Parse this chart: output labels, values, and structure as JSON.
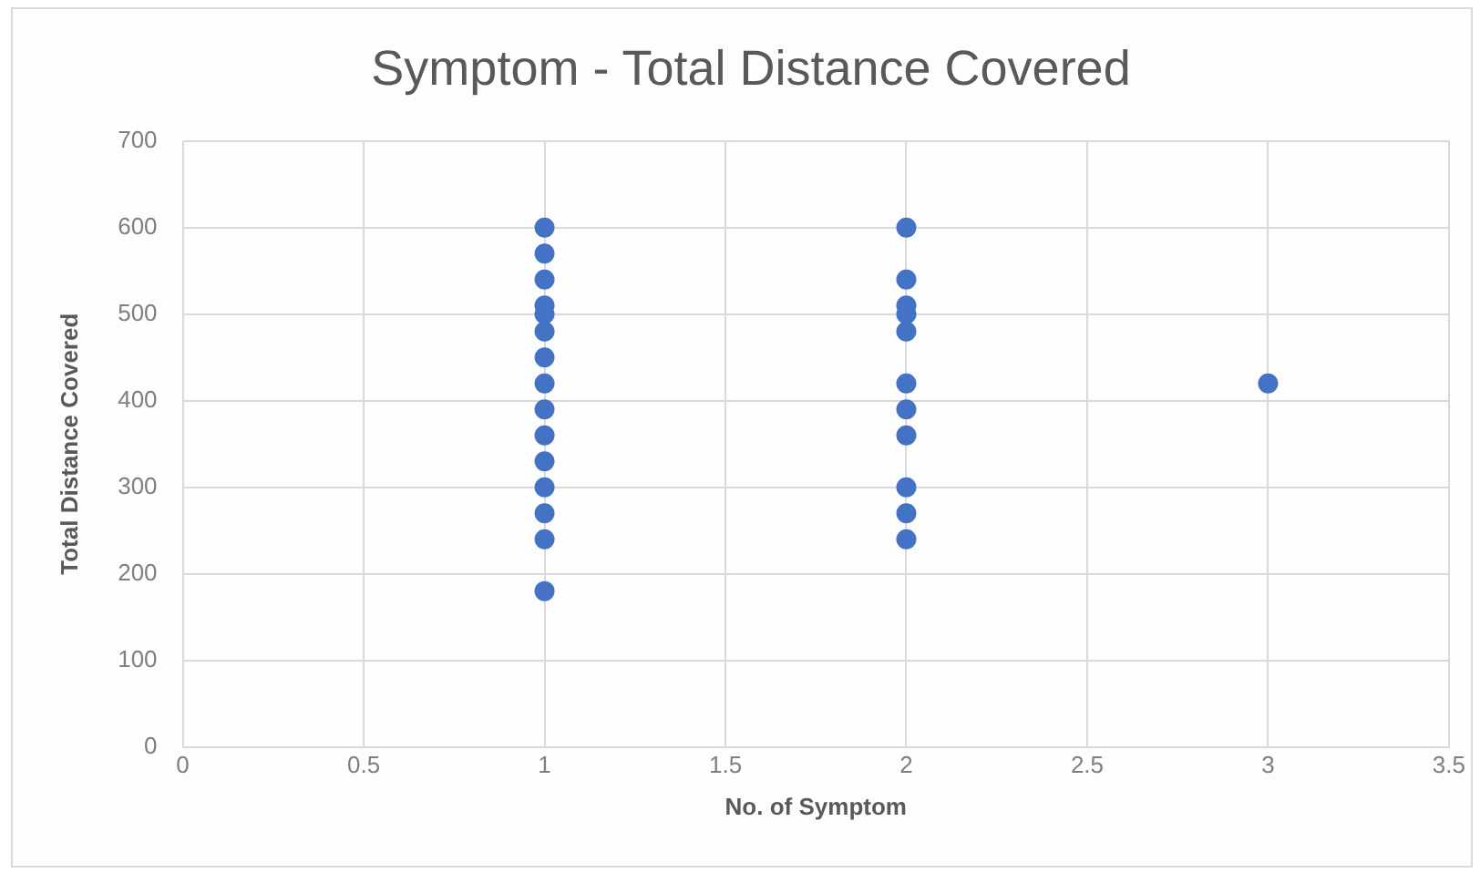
{
  "chart_data": {
    "type": "scatter",
    "title": "Symptom - Total Distance Covered",
    "xlabel": "No. of Symptom",
    "ylabel": "Total Distance Covered",
    "xlim": [
      0,
      3.5
    ],
    "xticks": [
      0,
      0.5,
      1,
      1.5,
      2,
      2.5,
      3,
      3.5
    ],
    "ylim": [
      0,
      700
    ],
    "yticks": [
      0,
      100,
      200,
      300,
      400,
      500,
      600,
      700
    ],
    "grid": true,
    "legend": false,
    "marker": "circle",
    "series": [
      {
        "color": "#4472c4",
        "x": [
          1,
          1,
          1,
          1,
          1,
          1,
          1,
          1,
          1,
          1,
          1,
          1,
          1,
          1,
          1,
          2,
          2,
          2,
          2,
          2,
          2,
          2,
          2,
          2,
          2,
          2,
          3
        ],
        "values": [
          600,
          570,
          540,
          510,
          500,
          480,
          450,
          420,
          390,
          360,
          330,
          300,
          270,
          240,
          180,
          600,
          540,
          510,
          500,
          480,
          420,
          390,
          360,
          300,
          270,
          240,
          420
        ]
      }
    ]
  }
}
